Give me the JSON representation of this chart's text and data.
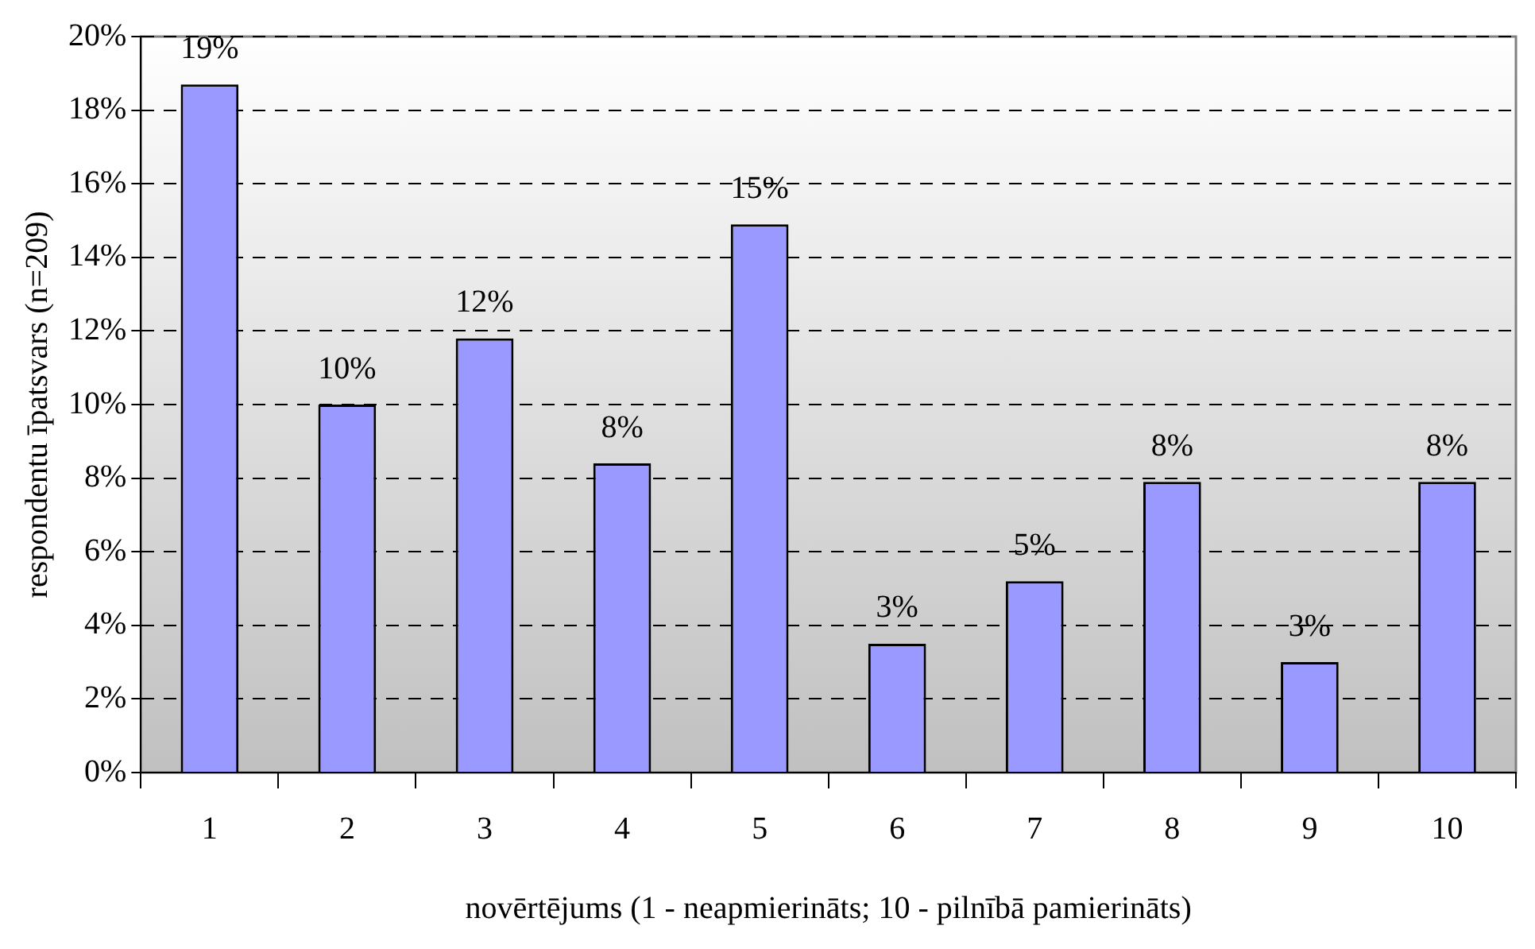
{
  "chart_data": {
    "type": "bar",
    "xlabel": "novērtējums (1 - neapmierināts; 10 - pilnībā pamierināts)",
    "ylabel": "respondentu īpatsvars (n=209)",
    "categories": [
      "1",
      "2",
      "3",
      "4",
      "5",
      "6",
      "7",
      "8",
      "9",
      "10"
    ],
    "values": [
      18.7,
      10.0,
      11.8,
      8.4,
      14.9,
      3.5,
      5.2,
      7.9,
      3.0,
      7.9
    ],
    "value_labels": [
      "19%",
      "10%",
      "12%",
      "8%",
      "15%",
      "3%",
      "5%",
      "8%",
      "3%",
      "8%"
    ],
    "color": "#9999ff",
    "ylim": [
      0,
      20
    ],
    "yticks": [
      {
        "value": 0,
        "label": "0%"
      },
      {
        "value": 2,
        "label": "2%"
      },
      {
        "value": 4,
        "label": "4%"
      },
      {
        "value": 6,
        "label": "6%"
      },
      {
        "value": 8,
        "label": "8%"
      },
      {
        "value": 10,
        "label": "10%"
      },
      {
        "value": 12,
        "label": "12%"
      },
      {
        "value": 14,
        "label": "14%"
      },
      {
        "value": 16,
        "label": "16%"
      },
      {
        "value": 18,
        "label": "18%"
      },
      {
        "value": 20,
        "label": "20%"
      }
    ],
    "grid": "y",
    "legend": false
  }
}
